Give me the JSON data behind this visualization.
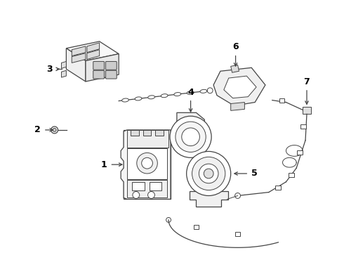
{
  "background_color": "#ffffff",
  "line_color": "#444444",
  "label_color": "#000000",
  "figsize": [
    4.9,
    3.6
  ],
  "dpi": 100,
  "parts": [
    {
      "id": 1,
      "label": "1"
    },
    {
      "id": 2,
      "label": "2"
    },
    {
      "id": 3,
      "label": "3"
    },
    {
      "id": 4,
      "label": "4"
    },
    {
      "id": 5,
      "label": "5"
    },
    {
      "id": 6,
      "label": "6"
    },
    {
      "id": 7,
      "label": "7"
    }
  ]
}
